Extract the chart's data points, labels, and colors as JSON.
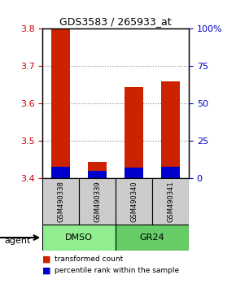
{
  "title": "GDS3583 / 265933_at",
  "samples": [
    "GSM490338",
    "GSM490339",
    "GSM490340",
    "GSM490341"
  ],
  "groups": [
    "DMSO",
    "DMSO",
    "GR24",
    "GR24"
  ],
  "group_labels": [
    "DMSO",
    "GR24"
  ],
  "group_colors": [
    "#90EE90",
    "#66CC66"
  ],
  "red_tops": [
    3.8,
    3.445,
    3.645,
    3.66
  ],
  "blue_tops": [
    3.432,
    3.421,
    3.43,
    3.432
  ],
  "bar_bottom": 3.4,
  "ylim_left": [
    3.4,
    3.8
  ],
  "ylim_right": [
    0,
    100
  ],
  "yticks_left": [
    3.4,
    3.5,
    3.6,
    3.7,
    3.8
  ],
  "yticks_right": [
    0,
    25,
    50,
    75,
    100
  ],
  "ytick_right_labels": [
    "0",
    "25",
    "50",
    "75",
    "100%"
  ],
  "left_color": "#cc0000",
  "right_color": "#0000cc",
  "bar_width": 0.5,
  "red_color": "#cc2200",
  "blue_color": "#0000cc",
  "legend_items": [
    "transformed count",
    "percentile rank within the sample"
  ],
  "legend_colors": [
    "#cc2200",
    "#0000cc"
  ],
  "agent_label": "agent",
  "background_plot": "#ffffff",
  "sample_box_color": "#cccccc",
  "grid_color": "#888888"
}
